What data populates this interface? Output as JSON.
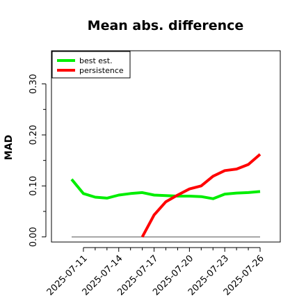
{
  "chart_data": {
    "type": "line",
    "title": "Mean abs. difference",
    "xlabel": "",
    "ylabel": "MAD",
    "x": [
      "2025-07-10",
      "2025-07-11",
      "2025-07-12",
      "2025-07-13",
      "2025-07-14",
      "2025-07-15",
      "2025-07-16",
      "2025-07-17",
      "2025-07-18",
      "2025-07-19",
      "2025-07-20",
      "2025-07-21",
      "2025-07-22",
      "2025-07-23",
      "2025-07-24",
      "2025-07-25",
      "2025-07-26"
    ],
    "x_ticks": [
      "2025-07-11",
      "2025-07-14",
      "2025-07-17",
      "2025-07-20",
      "2025-07-23",
      "2025-07-26"
    ],
    "y_ticks": [
      "0.00",
      "0.10",
      "0.20",
      "0.30"
    ],
    "ylim": [
      -0.01,
      0.365
    ],
    "grid": false,
    "legend_position": "top-left",
    "reference_line": 0,
    "series": [
      {
        "name": "best est.",
        "color": "#00ee00",
        "values": [
          0.113,
          0.085,
          0.078,
          0.076,
          0.082,
          0.085,
          0.087,
          0.082,
          0.081,
          0.08,
          0.08,
          0.079,
          0.075,
          0.084,
          0.086,
          0.087,
          0.089
        ]
      },
      {
        "name": "persistence",
        "color": "#ff0000",
        "values": [
          null,
          null,
          null,
          null,
          null,
          null,
          0.0,
          0.043,
          0.069,
          0.082,
          0.094,
          0.1,
          0.119,
          0.13,
          0.133,
          0.142,
          0.162
        ]
      }
    ]
  }
}
